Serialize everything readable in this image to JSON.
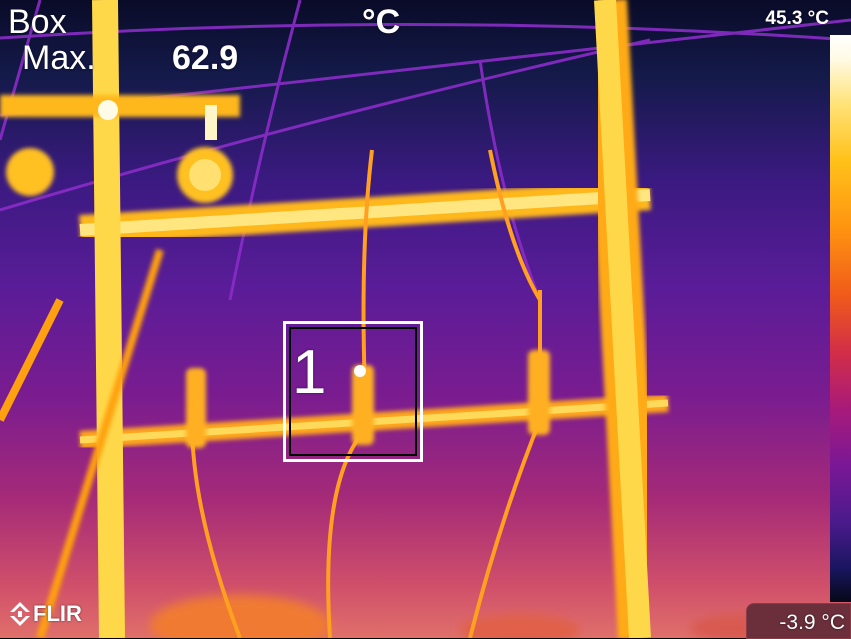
{
  "overlay": {
    "mode_label": "Box",
    "stat_label": "Max.",
    "stat_value": "62.9",
    "unit": "°C"
  },
  "scale": {
    "max_label": "45.3 °C",
    "min_label": "-3.9 °C"
  },
  "measurement_box": {
    "number": "1"
  },
  "brand": {
    "logo_text": "FLIR",
    "logo_icon": "flir-chevron-icon"
  },
  "palette": {
    "hot": "#ffffff",
    "warm": "#ffcc1a",
    "mid": "#f06a1a",
    "cool": "#7a1896",
    "cold": "#0a0b28"
  }
}
